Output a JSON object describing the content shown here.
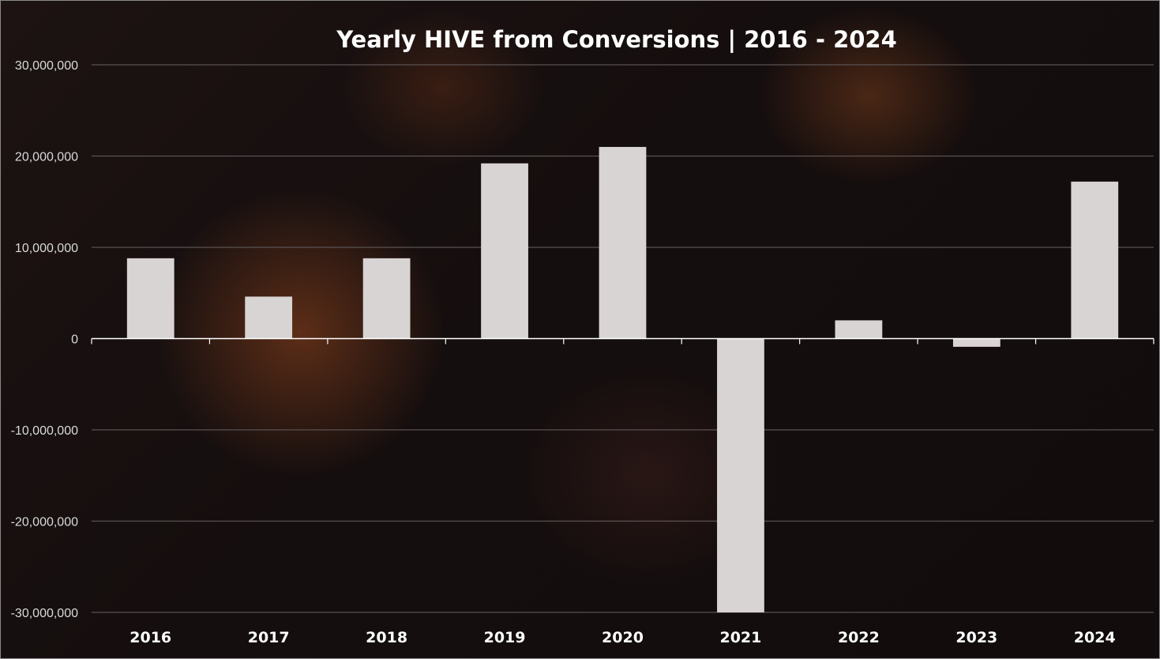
{
  "chart_data": {
    "type": "bar",
    "title": "Yearly HIVE from Conversions | 2016 - 2024",
    "xlabel": "",
    "ylabel": "",
    "categories": [
      "2016",
      "2017",
      "2018",
      "2019",
      "2020",
      "2021",
      "2022",
      "2023",
      "2024"
    ],
    "values": [
      8800000,
      4600000,
      8800000,
      19200000,
      21000000,
      -30000000,
      2000000,
      -900000,
      17200000
    ],
    "ylim": [
      -30000000,
      30000000
    ],
    "yticks": [
      30000000,
      20000000,
      10000000,
      0,
      -10000000,
      -20000000,
      -30000000
    ],
    "ytick_labels": [
      "30,000,000",
      "20,000,000",
      "10,000,000",
      "0",
      "-10,000,000",
      "-20,000,000",
      "-30,000,000"
    ],
    "grid": true,
    "bar_color": "#d9d4d4",
    "gridline_color": "#5a5252",
    "axis_color": "#ffffff"
  }
}
